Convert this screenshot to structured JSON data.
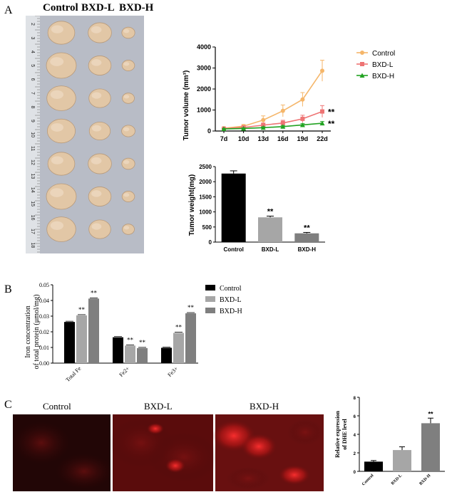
{
  "panels": {
    "A": "A",
    "B": "B",
    "C": "C"
  },
  "photo": {
    "groups": [
      "Control",
      "BXD-L",
      "BXD-H"
    ],
    "ruler_numbers": [
      "2",
      "3",
      "4",
      "5",
      "6",
      "7",
      "8",
      "9",
      "10",
      "11",
      "12",
      "13",
      "14",
      "15",
      "16",
      "17",
      "18"
    ],
    "colors": {
      "background": "#b8bcc6",
      "tumor": "#e2c7a6",
      "ruler": "#dfe2e6"
    }
  },
  "fluor": {
    "labels": [
      "Control",
      "BXD-L",
      "BXD-H"
    ],
    "colors": {
      "dark": "#1e0505",
      "red": "#c81818"
    }
  },
  "chart_data": [
    {
      "id": "tumor-volume",
      "type": "line",
      "title": "",
      "xlabel": "",
      "ylabel": "Tumor volume (mm³)",
      "categories": [
        "7d",
        "10d",
        "13d",
        "16d",
        "19d",
        "22d"
      ],
      "ylim": [
        0,
        4000
      ],
      "yticks": [
        "0",
        "1000",
        "2000",
        "3000",
        "4000"
      ],
      "legend_position": "right",
      "series": [
        {
          "name": "Control",
          "color": "#f5b66a",
          "marker": "circle",
          "values": [
            130,
            230,
            520,
            960,
            1500,
            2870
          ],
          "errors": [
            30,
            80,
            200,
            280,
            330,
            500
          ],
          "sig": ""
        },
        {
          "name": "BXD-L",
          "color": "#ee7474",
          "marker": "square",
          "values": [
            110,
            170,
            280,
            380,
            580,
            930
          ],
          "errors": [
            20,
            50,
            100,
            130,
            170,
            280
          ],
          "sig": "**"
        },
        {
          "name": "BXD-H",
          "color": "#22a322",
          "marker": "triangle",
          "values": [
            100,
            120,
            160,
            210,
            290,
            370
          ],
          "errors": [
            15,
            30,
            40,
            50,
            60,
            80
          ],
          "sig": "**"
        }
      ]
    },
    {
      "id": "tumor-weight",
      "type": "bar",
      "title": "",
      "xlabel": "",
      "ylabel": "Tumor weight(mg)",
      "categories": [
        "Control",
        "BXD-L",
        "BXD-H"
      ],
      "values": [
        2270,
        820,
        290
      ],
      "errors": [
        90,
        40,
        30
      ],
      "sig": [
        "",
        "**",
        "**"
      ],
      "colors": [
        "#000000",
        "#a6a6a6",
        "#7f7f7f"
      ],
      "ylim": [
        0,
        2500
      ],
      "yticks": [
        "0",
        "500",
        "1000",
        "1500",
        "2000",
        "2500"
      ]
    },
    {
      "id": "iron",
      "type": "bar",
      "title": "",
      "xlabel": "",
      "ylabel": "Iron concentration of total protein (μmol/mg)",
      "ylabel_lines": [
        "Iron concentration",
        "of total protein (μmol/mg)"
      ],
      "categories": [
        "Total Fe",
        "Fe2+",
        "Fe3+"
      ],
      "ylim": [
        0,
        0.05
      ],
      "yticks": [
        "0.00",
        "0.01",
        "0.02",
        "0.03",
        "0.04",
        "0.05"
      ],
      "legend_position": "right",
      "series": [
        {
          "name": "Control",
          "color": "#000000",
          "values": [
            0.0263,
            0.0165,
            0.0098
          ],
          "sig": [
            "",
            "",
            ""
          ]
        },
        {
          "name": "BXD-L",
          "color": "#a6a6a6",
          "values": [
            0.0305,
            0.0112,
            0.0193
          ],
          "sig": [
            "**",
            "**",
            "**"
          ]
        },
        {
          "name": "BXD-H",
          "color": "#7f7f7f",
          "values": [
            0.0412,
            0.0096,
            0.0318
          ],
          "sig": [
            "**",
            "**",
            "**"
          ]
        }
      ]
    },
    {
      "id": "dhe",
      "type": "bar",
      "title": "",
      "xlabel": "",
      "ylabel": "Relative expression of DHE level",
      "ylabel_lines": [
        "Relative expression",
        "of DHE level"
      ],
      "categories": [
        "Control",
        "BXD-L",
        "BXD-H"
      ],
      "values": [
        1.05,
        2.3,
        5.2
      ],
      "errors": [
        0.12,
        0.35,
        0.55
      ],
      "sig": [
        "",
        "",
        "**"
      ],
      "colors": [
        "#000000",
        "#a6a6a6",
        "#7f7f7f"
      ],
      "ylim": [
        0,
        8
      ],
      "yticks": [
        "0",
        "2",
        "4",
        "6",
        "8"
      ]
    }
  ]
}
